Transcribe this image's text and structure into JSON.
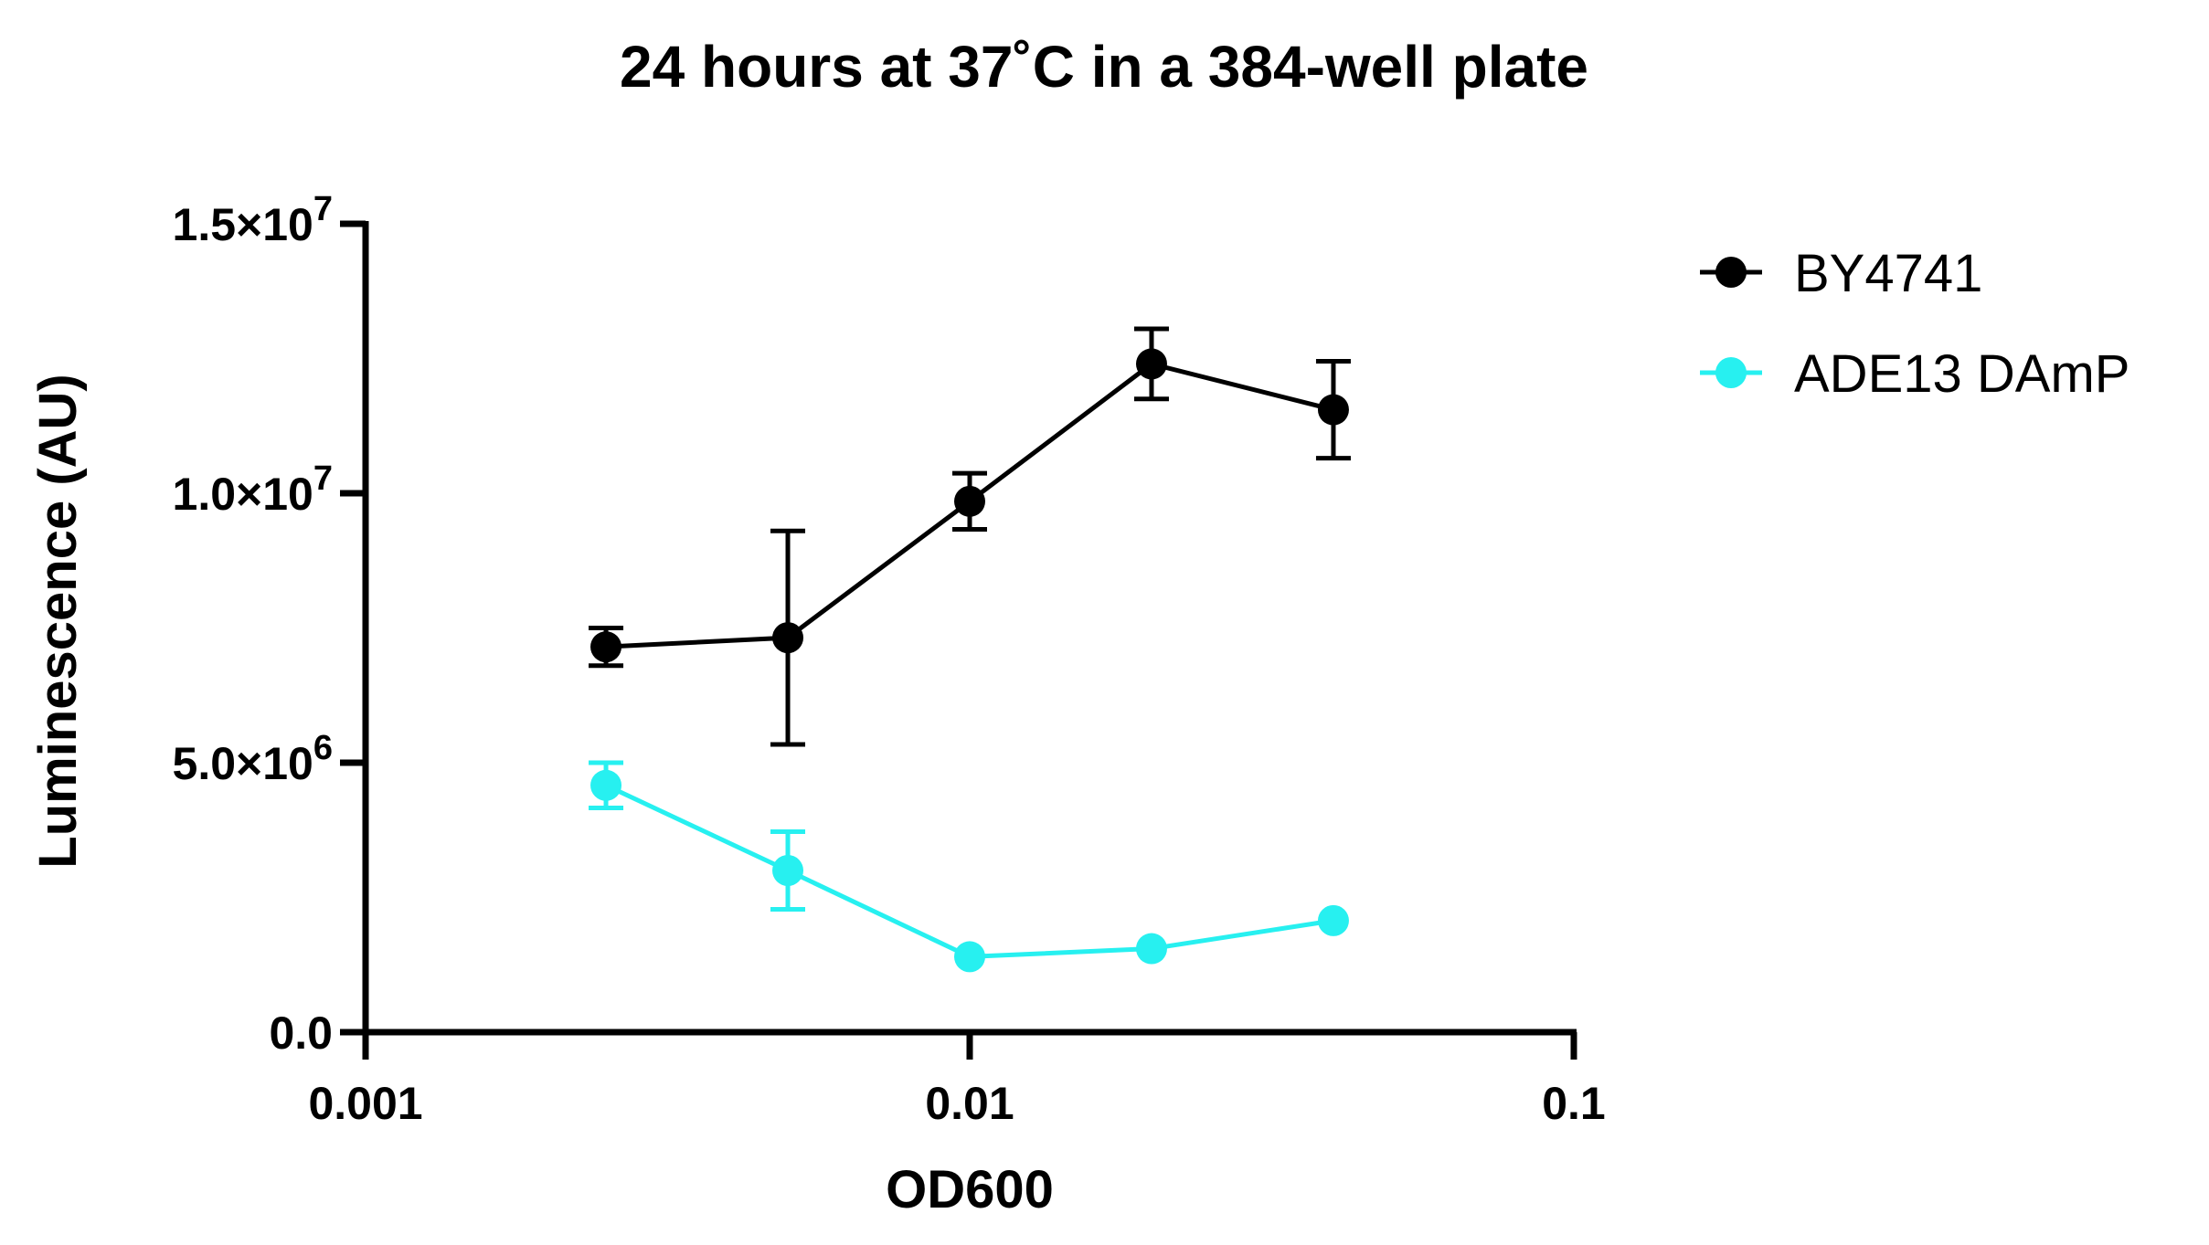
{
  "chart_data": {
    "type": "line",
    "title": "24 hours at 37˚C in a 384-well plate",
    "xlabel": "OD600",
    "ylabel": "Luminescence (AU)",
    "x_scale": "log",
    "xlim": [
      0.001,
      0.1
    ],
    "ylim": [
      0,
      15000000
    ],
    "x_ticks": [
      {
        "value": 0.001,
        "label": "0.001"
      },
      {
        "value": 0.01,
        "label": "0.01"
      },
      {
        "value": 0.1,
        "label": "0.1"
      }
    ],
    "y_ticks": [
      {
        "value": 0,
        "label": "0.0",
        "mantissa": "0.0",
        "exponent": ""
      },
      {
        "value": 5000000,
        "label": "5.0×10⁶",
        "mantissa": "5.0×10",
        "exponent": "6"
      },
      {
        "value": 10000000,
        "label": "1.0×10⁷",
        "mantissa": "1.0×10",
        "exponent": "7"
      },
      {
        "value": 15000000,
        "label": "1.5×10⁷",
        "mantissa": "1.5×10",
        "exponent": "7"
      }
    ],
    "x": [
      0.0025,
      0.005,
      0.01,
      0.02,
      0.04
    ],
    "series": [
      {
        "name": "BY4741",
        "color": "#000000",
        "values": [
          7150000,
          7320000,
          9850000,
          12400000,
          11550000
        ],
        "errors": [
          350000,
          1980000,
          520000,
          650000,
          900000
        ]
      },
      {
        "name": "ADE13 DAmP",
        "color": "#27f0f0",
        "values": [
          4580000,
          3000000,
          1400000,
          1550000,
          2070000
        ],
        "errors": [
          420000,
          720000,
          0,
          0,
          0
        ]
      }
    ],
    "legend_position": "top-right",
    "grid": false
  }
}
